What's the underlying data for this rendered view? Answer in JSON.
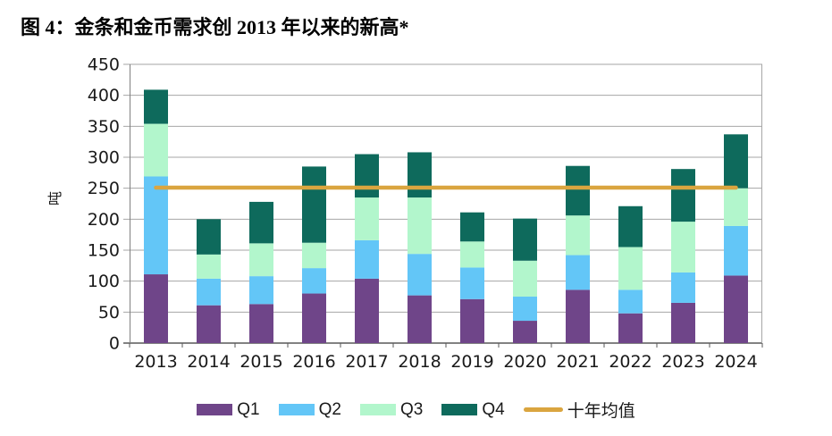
{
  "chart_data": {
    "type": "bar",
    "subtype": "stacked",
    "title": "图 4：金条和金币需求创 2013 年以来的新高*",
    "ylabel": "吨",
    "xlabel": "",
    "ylim": [
      0,
      450
    ],
    "yticks": [
      0,
      50,
      100,
      150,
      200,
      250,
      300,
      350,
      400,
      450
    ],
    "grid": true,
    "legend_position": "bottom",
    "categories": [
      "2013",
      "2014",
      "2015",
      "2016",
      "2017",
      "2018",
      "2019",
      "2020",
      "2021",
      "2022",
      "2023",
      "2024"
    ],
    "series": [
      {
        "name": "Q1",
        "color": "#6F4589",
        "values": [
          111,
          61,
          63,
          80,
          104,
          77,
          71,
          36,
          86,
          48,
          65,
          109
        ]
      },
      {
        "name": "Q2",
        "color": "#63C6F7",
        "values": [
          158,
          43,
          45,
          41,
          62,
          67,
          51,
          39,
          56,
          38,
          49,
          80
        ]
      },
      {
        "name": "Q3",
        "color": "#B2F6CC",
        "values": [
          85,
          39,
          53,
          41,
          69,
          91,
          42,
          58,
          64,
          69,
          82,
          61
        ]
      },
      {
        "name": "Q4",
        "color": "#0E6A5C",
        "values": [
          55,
          57,
          67,
          123,
          70,
          73,
          47,
          68,
          80,
          66,
          85,
          87
        ]
      }
    ],
    "average_line": {
      "name": "十年均值",
      "value": 251,
      "color": "#DAA53F"
    },
    "style": {
      "grid_color": "#A6A6A6",
      "axis_frame_color": "#808080",
      "baseline_color": "#595959",
      "tick_text_color": "#1a1a1a"
    }
  }
}
